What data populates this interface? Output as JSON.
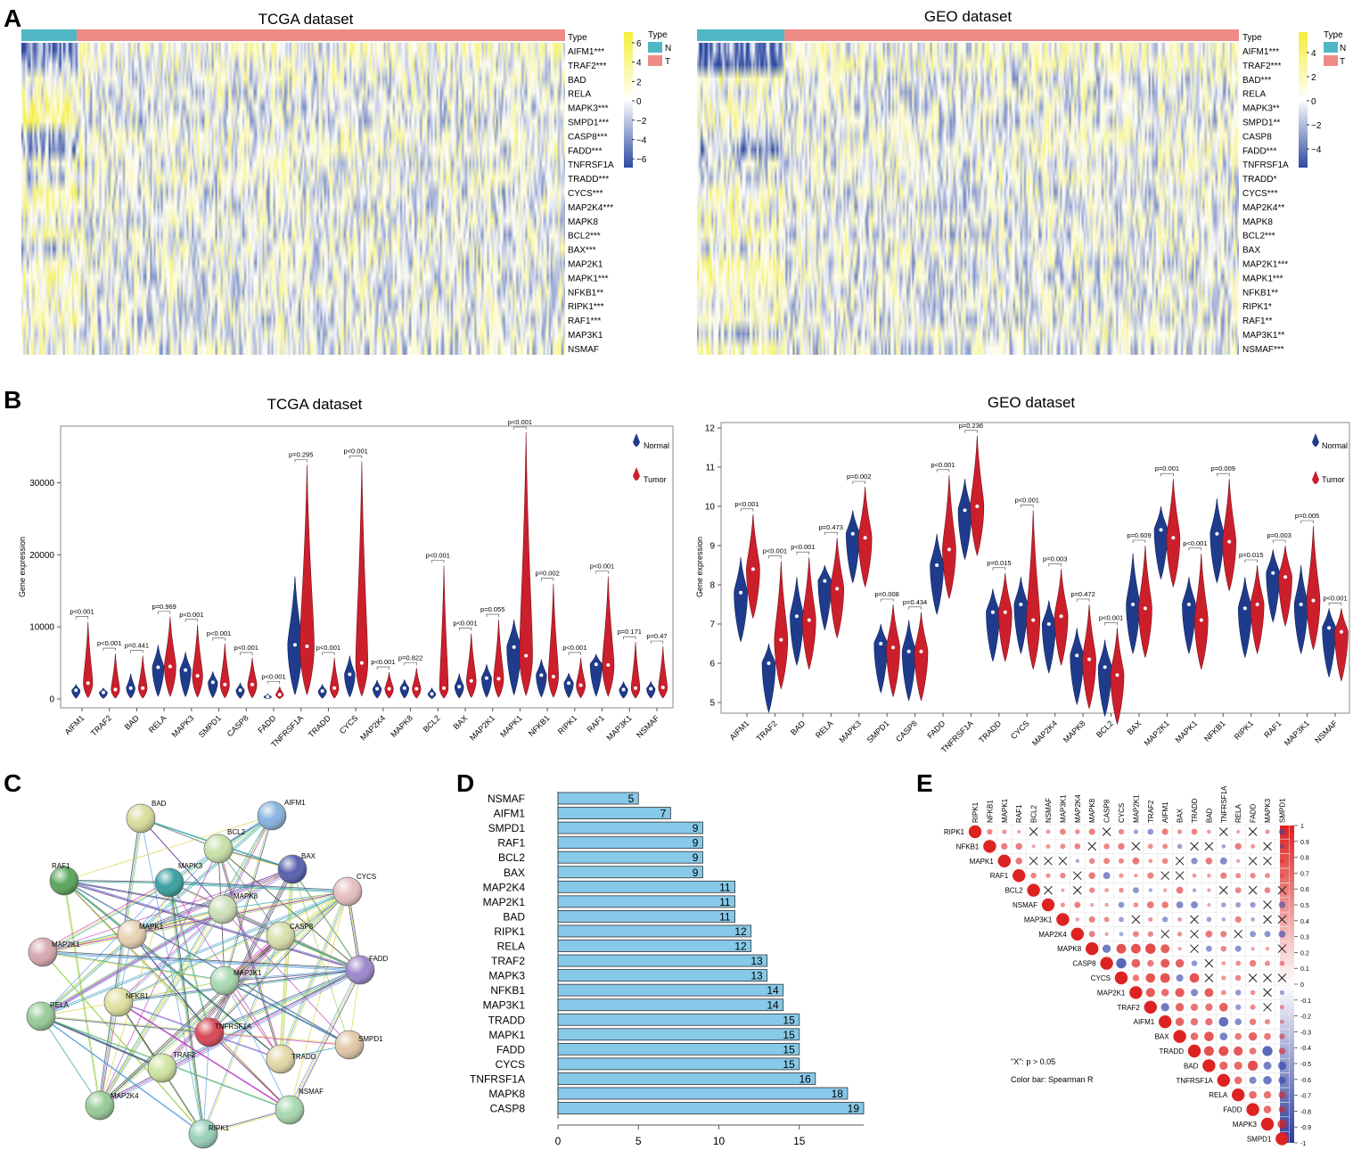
{
  "panel_letters": {
    "a": "A",
    "b": "B",
    "c": "C",
    "d": "D",
    "e": "E"
  },
  "heatmap_a": {
    "tcga_title": "TCGA dataset",
    "geo_title": "GEO dataset",
    "type_label": "Type",
    "legend_title": "Type",
    "legend_n": "N",
    "legend_t": "T",
    "tcga_genes": [
      "AIFM1***",
      "TRAF2***",
      "BAD",
      "RELA",
      "MAPK3***",
      "SMPD1***",
      "CASP8***",
      "FADD***",
      "TNFRSF1A",
      "TRADD***",
      "CYCS***",
      "MAP2K4***",
      "MAPK8",
      "BCL2***",
      "BAX***",
      "MAP2K1",
      "MAPK1***",
      "NFKB1**",
      "RIPK1***",
      "RAF1***",
      "MAP3K1",
      "NSMAF"
    ],
    "geo_genes": [
      "AIFM1***",
      "TRAF2***",
      "BAD***",
      "RELA",
      "MAPK3**",
      "SMPD1**",
      "CASP8",
      "FADD***",
      "TNFRSF1A",
      "TRADD*",
      "CYCS***",
      "MAP2K4**",
      "MAPK8",
      "BCL2***",
      "BAX",
      "MAP2K1***",
      "MAPK1***",
      "NFKB1**",
      "RIPK1*",
      "RAF1**",
      "MAP3K1**",
      "NSMAF***"
    ],
    "tcga_scale": [
      "6",
      "4",
      "2",
      "0",
      "−2",
      "−4",
      "−6"
    ],
    "geo_scale": [
      "4",
      "2",
      "0",
      "−2",
      "−4"
    ],
    "colors": {
      "normal": "#4fb8c4",
      "tumor": "#ee8b86",
      "high": "#f4ee3c",
      "low": "#2c4aa0"
    }
  },
  "violin_b": {
    "genes": [
      "AIFM1",
      "TRAF2",
      "BAD",
      "RELA",
      "MAPK3",
      "SMPD1",
      "CASP8",
      "FADD",
      "TNFRSF1A",
      "TRADD",
      "CYCS",
      "MAP2K4",
      "MAPK8",
      "BCL2",
      "BAX",
      "MAP2K1",
      "MAPK1",
      "NFKB1",
      "RIPK1",
      "RAF1",
      "MAP3K1",
      "NSMAF"
    ],
    "ylabel": "Gene expression",
    "legend_normal": "Normal",
    "legend_tumor": "Tumor",
    "colors": {
      "normal": "#1f3c8c",
      "tumor": "#cc1f2c"
    },
    "tcga": {
      "title": "TCGA dataset",
      "yticks": [
        "0",
        "10000",
        "20000",
        "30000"
      ],
      "ylim": [
        0,
        37000
      ],
      "pvalues": [
        "p<0.001",
        "p<0.001",
        "p=0.441",
        "p=0.969",
        "p<0.001",
        "p<0.001",
        "p<0.001",
        "p<0.001",
        "p=0.295",
        "p<0.001",
        "p<0.001",
        "p<0.001",
        "p=0.822",
        "p<0.001",
        "p<0.001",
        "p=0.055",
        "p<0.001",
        "p=0.002",
        "p<0.001",
        "p<0.001",
        "p=0.171",
        "p=0.47"
      ],
      "normal_median": [
        1200,
        900,
        1500,
        4400,
        4000,
        2300,
        1200,
        300,
        7500,
        1100,
        3400,
        1400,
        1500,
        700,
        1700,
        2900,
        7200,
        3300,
        2200,
        4800,
        1300,
        1400
      ],
      "tumor_median": [
        2200,
        1300,
        1500,
        4500,
        3200,
        2000,
        2000,
        600,
        7300,
        1500,
        5000,
        1400,
        1400,
        1500,
        2500,
        2800,
        6000,
        3100,
        1900,
        4700,
        1500,
        1600
      ],
      "normal_max": [
        2000,
        1500,
        3500,
        7500,
        6500,
        3800,
        2200,
        700,
        17000,
        2000,
        6000,
        2600,
        2700,
        1500,
        3500,
        4800,
        11000,
        5500,
        3600,
        6200,
        2400,
        2400
      ],
      "tumor_max": [
        10700,
        6300,
        6000,
        11400,
        10300,
        7700,
        5700,
        1700,
        32500,
        5700,
        33000,
        3700,
        4300,
        18500,
        9100,
        11000,
        37000,
        16000,
        5700,
        17000,
        7900,
        7300
      ]
    },
    "geo": {
      "title": "GEO dataset",
      "yticks": [
        "5",
        "6",
        "7",
        "8",
        "9",
        "10",
        "11",
        "12"
      ],
      "ylim": [
        5,
        12
      ],
      "pvalues": [
        "p<0.001",
        "p<0.001",
        "p<0.001",
        "p=0.473",
        "p=0.002",
        "p=0.008",
        "p=0.434",
        "p<0.001",
        "p=0.236",
        "p=0.015",
        "p<0.001",
        "p=0.003",
        "p=0.472",
        "p<0.001",
        "p=0.609",
        "p=0.001",
        "p<0.001",
        "p=0.009",
        "p=0.015",
        "p=0.003",
        "p=0.005",
        "p<0.001"
      ],
      "normal_median": [
        7.8,
        6.0,
        7.2,
        8.1,
        9.3,
        6.5,
        6.3,
        8.5,
        9.9,
        7.3,
        7.5,
        7.0,
        6.2,
        5.9,
        7.5,
        9.4,
        7.5,
        9.3,
        7.4,
        8.3,
        7.5,
        6.9
      ],
      "tumor_median": [
        8.4,
        6.6,
        7.1,
        7.9,
        9.2,
        6.4,
        6.3,
        8.9,
        10.0,
        7.3,
        7.1,
        7.2,
        6.1,
        5.7,
        7.4,
        9.2,
        7.1,
        9.1,
        7.5,
        8.2,
        7.6,
        6.8
      ],
      "normal_max": [
        8.7,
        6.5,
        8.2,
        8.5,
        9.9,
        7.0,
        7.1,
        9.3,
        10.7,
        7.9,
        8.2,
        7.6,
        6.9,
        6.6,
        8.8,
        10.0,
        8.2,
        10.2,
        8.2,
        8.9,
        8.5,
        7.4
      ],
      "tumor_max": [
        9.8,
        8.6,
        8.7,
        9.2,
        10.5,
        7.5,
        7.3,
        10.8,
        11.8,
        8.3,
        9.9,
        8.4,
        7.5,
        6.9,
        9.0,
        10.7,
        8.8,
        10.7,
        8.5,
        9.0,
        9.5,
        7.4
      ]
    }
  },
  "network_c": {
    "nodes": [
      "BAD",
      "AIFM1",
      "BCL2",
      "BAX",
      "RAF1",
      "MAPK3",
      "CYCS",
      "MAPK8",
      "CASP8",
      "MAPK1",
      "MAP2K1",
      "FADD",
      "MAP3K1",
      "NFKB1",
      "RELA",
      "TNFRSF1A",
      "SMPD1",
      "TRAF2",
      "TRADD",
      "MAP2K4",
      "NSMAF",
      "RIPK1"
    ],
    "node_colors": {
      "BAD": "#d8dc9c",
      "AIFM1": "#88b4e0",
      "BCL2": "#c8e0a8",
      "BAX": "#5860b0",
      "RAF1": "#5aa65a",
      "MAPK3": "#3aa0a0",
      "CYCS": "#e8c0c0",
      "MAPK8": "#cce0b8",
      "CASP8": "#d6e0a8",
      "MAPK1": "#e8d2b0",
      "MAP2K1": "#d8a8b0",
      "FADD": "#9c88cc",
      "MAP3K1": "#a8d8b0",
      "NFKB1": "#e0e0a0",
      "RELA": "#98cc98",
      "TNFRSF1A": "#d84858",
      "SMPD1": "#e0c8a8",
      "TRAF2": "#d0e4a0",
      "TRADD": "#e4d8a8",
      "MAP2K4": "#98cc98",
      "NSMAF": "#a8d8b0",
      "RIPK1": "#98d0b8"
    }
  },
  "chart_data": {
    "type": "bar",
    "categories": [
      "NSMAF",
      "AIFM1",
      "SMPD1",
      "RAF1",
      "BCL2",
      "BAX",
      "MAP2K4",
      "MAP2K1",
      "BAD",
      "RIPK1",
      "RELA",
      "TRAF2",
      "MAPK3",
      "NFKB1",
      "MAP3K1",
      "TRADD",
      "MAPK1",
      "FADD",
      "CYCS",
      "TNFRSF1A",
      "MAPK8",
      "CASP8"
    ],
    "values": [
      5,
      7,
      9,
      9,
      9,
      9,
      11,
      11,
      11,
      12,
      12,
      13,
      13,
      14,
      14,
      15,
      15,
      15,
      15,
      16,
      18,
      19
    ],
    "value_labels": [
      "5",
      "7",
      "9",
      "9",
      "9",
      "9",
      "11",
      "11",
      "11",
      "12",
      "12",
      "13",
      "13",
      "14",
      "14",
      "15",
      "15",
      "15",
      "15",
      "16",
      "18",
      "19"
    ],
    "xticks": [
      "0",
      "5",
      "10",
      "15"
    ],
    "xlim": [
      0,
      19
    ],
    "title": "",
    "xlabel": "",
    "ylabel": "",
    "color": "#86c9e8"
  },
  "corr_e": {
    "genes": [
      "RIPK1",
      "NFKB1",
      "MAPK1",
      "RAF1",
      "BCL2",
      "NSMAF",
      "MAP3K1",
      "MAP2K4",
      "MAPK8",
      "CASP8",
      "CYCS",
      "MAP2K1",
      "TRAF2",
      "AIFM1",
      "BAX",
      "TRADD",
      "BAD",
      "TNFRSF1A",
      "RELA",
      "FADD",
      "MAPK3",
      "SMPD1"
    ],
    "note": "\"X\": p > 0.05",
    "colorbar_label": "Color bar: Spearman R",
    "colorbar_ticks": [
      "1",
      "0.9",
      "0.8",
      "0.7",
      "0.6",
      "0.5",
      "0.4",
      "0.3",
      "0.2",
      "0.1",
      "0",
      "-0.1",
      "-0.2",
      "-0.3",
      "-0.4",
      "-0.5",
      "-0.6",
      "-0.7",
      "-0.8",
      "-0.9",
      "-1"
    ],
    "colors": {
      "pos": "#dd2222",
      "neg": "#3344aa"
    }
  }
}
